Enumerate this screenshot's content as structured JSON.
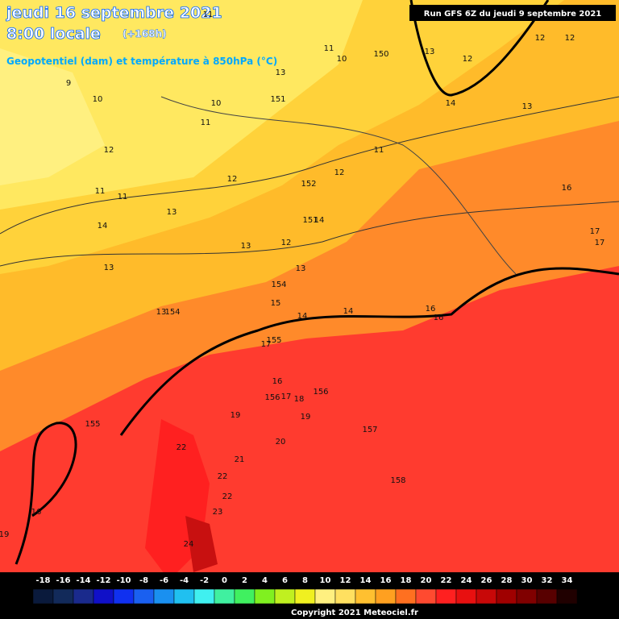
{
  "header": {
    "date": "jeudi 16 septembre 2021",
    "time": "8:00 locale",
    "lead": "(+168h)",
    "subtitle": "Geopotentiel (dam) et température à 850hPa (°C)",
    "run": "Run GFS 6Z du jeudi 9 septembre 2021"
  },
  "map_labels": [
    "11",
    "11",
    "10",
    "150",
    "13",
    "12",
    "12",
    "12",
    "14",
    "13",
    "10",
    "9",
    "10",
    "13",
    "151",
    "11",
    "12",
    "11",
    "12",
    "152",
    "12",
    "11",
    "11",
    "13",
    "14",
    "151",
    "14",
    "12",
    "13",
    "13",
    "13",
    "16",
    "17",
    "17",
    "154",
    "15",
    "14",
    "14",
    "16",
    "16",
    "13",
    "154",
    "155",
    "17",
    "16",
    "156",
    "156",
    "17",
    "18",
    "19",
    "19",
    "155",
    "157",
    "22",
    "20",
    "21",
    "22",
    "158",
    "22",
    "16",
    "23",
    "24",
    "19"
  ],
  "legend": {
    "ticks": [
      -18,
      -16,
      -14,
      -12,
      -10,
      -8,
      -6,
      -4,
      -2,
      0,
      2,
      4,
      6,
      8,
      10,
      12,
      14,
      16,
      18,
      20,
      22,
      24,
      26,
      28,
      30,
      32,
      34
    ],
    "colors": [
      "#0a1a3c",
      "#122a5a",
      "#1a2a8c",
      "#1010c8",
      "#1030f0",
      "#1a60f0",
      "#1a90f0",
      "#20c0f0",
      "#40f0f0",
      "#40f0a0",
      "#40f060",
      "#80f020",
      "#c0f020",
      "#f0f020",
      "#fff080",
      "#ffe060",
      "#ffc030",
      "#ffa020",
      "#ff7020",
      "#ff4a30",
      "#ff2020",
      "#e81010",
      "#c80808",
      "#a00000",
      "#800000",
      "#580000",
      "#200000"
    ]
  },
  "copyright": "Copyright 2021 Meteociel.fr"
}
